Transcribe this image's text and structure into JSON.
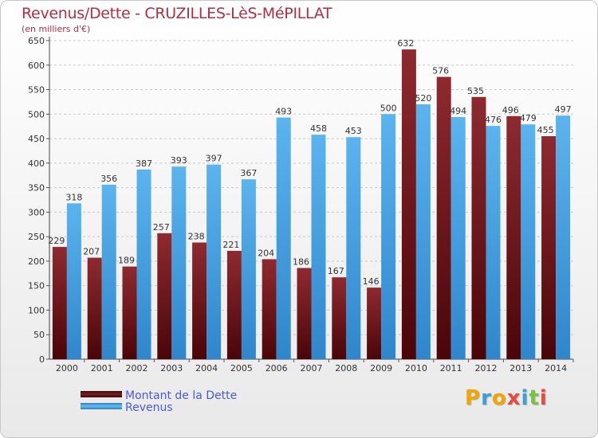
{
  "title": "Revenus/Dette - CRUZILLES-LèS-MéPILLAT",
  "subtitle": "(en milliers d'€)",
  "colors": {
    "dette": "#7a1e22",
    "revenus": "#4ea9e6",
    "title": "#b03040",
    "legend_text": "#4a5bd1"
  },
  "legend": [
    {
      "label": "Montant de la Dette",
      "color": "#7a1e22"
    },
    {
      "label": "Revenus",
      "color": "#4ea9e6"
    }
  ],
  "logo": {
    "letters": [
      "P",
      "r",
      "o",
      "x",
      "i",
      "t",
      "i"
    ],
    "colors": [
      "#f0a500",
      "#3aa0d8",
      "#f0a500",
      "#e84c3d",
      "#3aa0d8",
      "#7cc242",
      "#e84c3d"
    ]
  },
  "chart_data": {
    "type": "bar",
    "categories": [
      "2000",
      "2001",
      "2002",
      "2003",
      "2004",
      "2005",
      "2006",
      "2007",
      "2008",
      "2009",
      "2010",
      "2011",
      "2012",
      "2013",
      "2014"
    ],
    "series": [
      {
        "name": "Montant de la Dette",
        "values": [
          229,
          207,
          189,
          257,
          238,
          221,
          204,
          186,
          167,
          146,
          632,
          576,
          535,
          496,
          455
        ]
      },
      {
        "name": "Revenus",
        "values": [
          318,
          356,
          387,
          393,
          397,
          367,
          493,
          458,
          453,
          500,
          520,
          494,
          476,
          479,
          497
        ]
      }
    ],
    "ylim": [
      0,
      650
    ],
    "yticks": [
      0,
      50,
      100,
      150,
      200,
      250,
      300,
      350,
      400,
      450,
      500,
      550,
      600,
      650
    ],
    "grid": true
  }
}
